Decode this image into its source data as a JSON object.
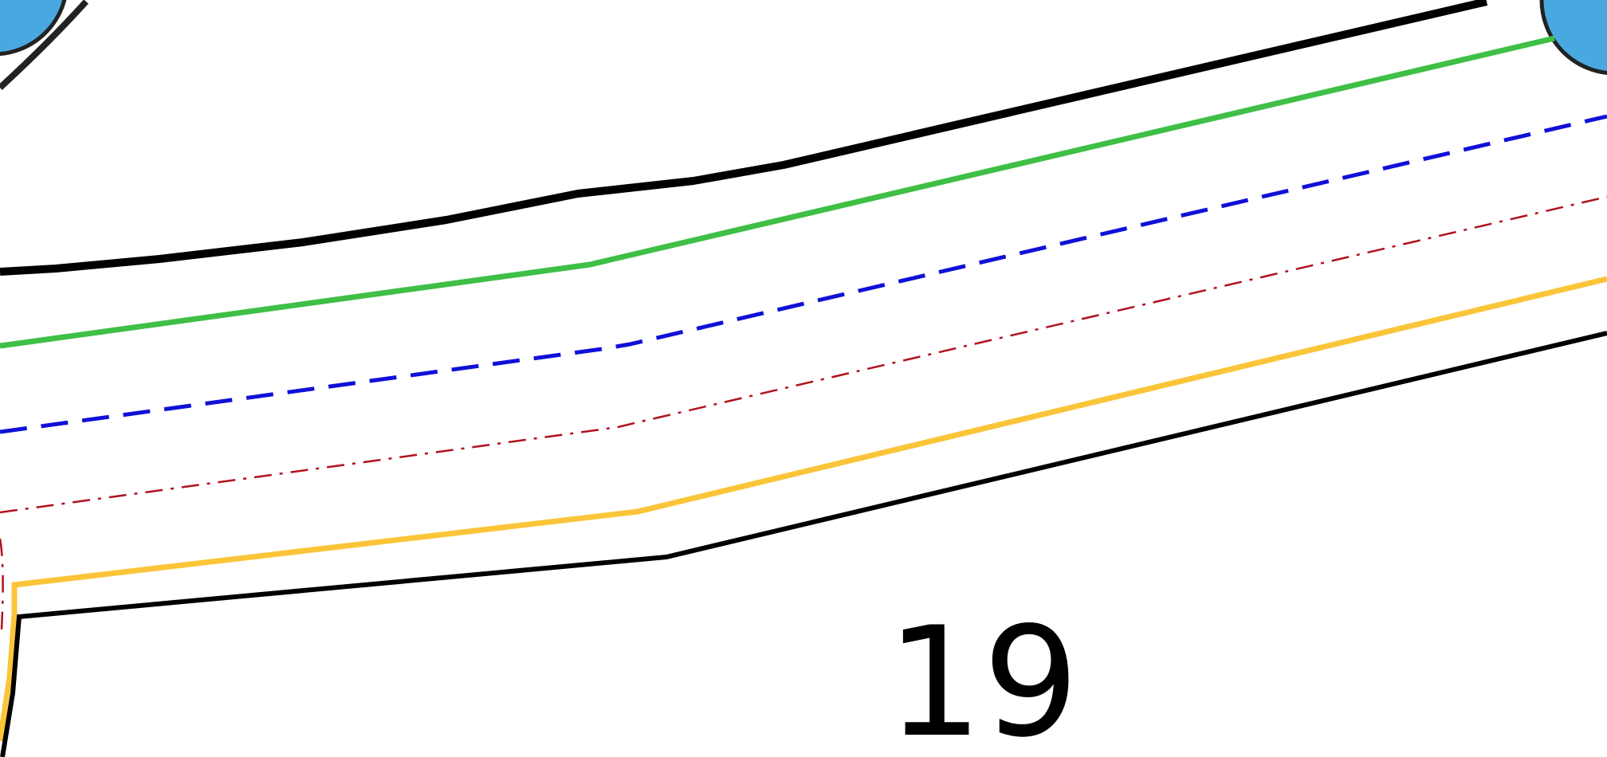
{
  "map": {
    "lot_number": "19",
    "colors": {
      "background": "#ffffff",
      "boundary_line": "#000000",
      "green_line": "#3fbf46",
      "blue_dashed_line": "#1010d8",
      "red_dashdot_line": "#b0121f",
      "yellow_line": "#fbc53a",
      "marker_fill": "#4aa8e0",
      "marker_stroke": "#222222"
    },
    "markers": [
      {
        "name": "left-marker-circle"
      },
      {
        "name": "right-marker-circle"
      }
    ],
    "lines": [
      {
        "name": "top-boundary-line",
        "style": "solid-thick"
      },
      {
        "name": "green-line",
        "style": "solid"
      },
      {
        "name": "blue-dashed-line",
        "style": "dashed"
      },
      {
        "name": "red-dashdot-line",
        "style": "dash-dot"
      },
      {
        "name": "yellow-line",
        "style": "solid"
      },
      {
        "name": "bottom-boundary-line",
        "style": "solid"
      }
    ]
  }
}
